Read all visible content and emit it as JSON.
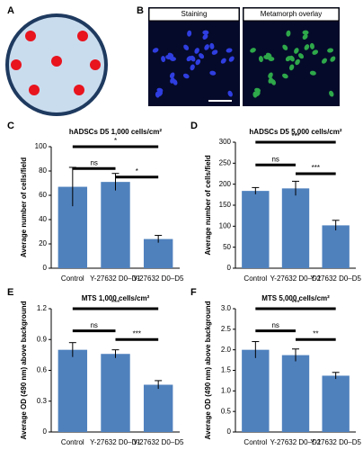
{
  "figure": {
    "a_label": "A",
    "b_label": "B",
    "image_captions": [
      "Staining",
      "Metamorph overlay"
    ]
  },
  "chart_data": [
    {
      "type": "bar",
      "label": "C",
      "title": "hADSCs D5 1,000 cells/cm²",
      "y_label": "Average number of cells/field",
      "categories": [
        "Control",
        "Y-27632 D0–D1",
        "Y-27632 D0–D5"
      ],
      "values": [
        67,
        71,
        24
      ],
      "errors": [
        16,
        7,
        3
      ],
      "color": "#4f81bd",
      "ylim": [
        0,
        100
      ],
      "yticks": [
        0,
        20,
        40,
        60,
        80,
        100
      ],
      "comparisons": [
        {
          "from": 0,
          "to": 2,
          "label": "*"
        },
        {
          "from": 0,
          "to": 1,
          "label": "ns"
        },
        {
          "from": 1,
          "to": 2,
          "label": "*"
        }
      ]
    },
    {
      "type": "bar",
      "label": "D",
      "title": "hADSCs D5 5,000 cells/cm²",
      "y_label": "Average number of cells/field",
      "categories": [
        "Control",
        "Y-27632 D0–D1",
        "Y-27632 D0–D5"
      ],
      "values": [
        184,
        190,
        102
      ],
      "errors": [
        8,
        17,
        12
      ],
      "color": "#4f81bd",
      "ylim": [
        0,
        300
      ],
      "yticks": [
        0,
        50,
        100,
        150,
        200,
        250,
        300
      ],
      "comparisons": [
        {
          "from": 0,
          "to": 2,
          "label": "***"
        },
        {
          "from": 0,
          "to": 1,
          "label": "ns"
        },
        {
          "from": 1,
          "to": 2,
          "label": "***"
        }
      ]
    },
    {
      "type": "bar",
      "label": "E",
      "title": "MTS 1,000 cells/cm²",
      "y_label": "Average OD (490 nm) above background",
      "categories": [
        "Control",
        "Y-27632 D0–D1",
        "Y-27632 D0–D5"
      ],
      "values": [
        0.8,
        0.76,
        0.46
      ],
      "errors": [
        0.07,
        0.04,
        0.04
      ],
      "color": "#4f81bd",
      "ylim": [
        0,
        1.2
      ],
      "yticks": [
        0,
        0.3,
        0.6,
        0.9,
        1.2
      ],
      "comparisons": [
        {
          "from": 0,
          "to": 2,
          "label": "***"
        },
        {
          "from": 0,
          "to": 1,
          "label": "ns"
        },
        {
          "from": 1,
          "to": 2,
          "label": "***"
        }
      ]
    },
    {
      "type": "bar",
      "label": "F",
      "title": "MTS 5,000 cells/cm²",
      "y_label": "Average OD (490 nm) above background",
      "categories": [
        "Control",
        "Y-27632 D0–D1",
        "Y-27632 D0–D5"
      ],
      "values": [
        2.0,
        1.87,
        1.37
      ],
      "errors": [
        0.2,
        0.15,
        0.08
      ],
      "color": "#4f81bd",
      "ylim": [
        0,
        3
      ],
      "yticks": [
        0,
        0.5,
        {
          "value": 1,
          "label": "1.0"
        },
        1.5,
        {
          "value": 2,
          "label": "2.0"
        },
        2.5,
        {
          "value": 3,
          "label": "3.0"
        }
      ],
      "comparisons": [
        {
          "from": 0,
          "to": 2,
          "label": "***"
        },
        {
          "from": 0,
          "to": 1,
          "label": "ns"
        },
        {
          "from": 1,
          "to": 2,
          "label": "**"
        }
      ]
    }
  ]
}
